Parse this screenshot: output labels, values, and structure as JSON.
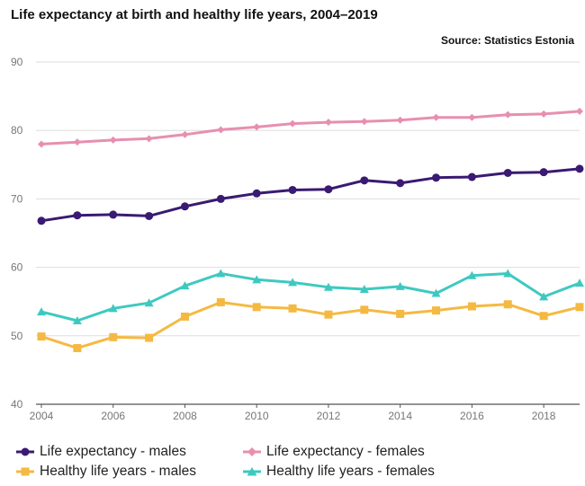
{
  "title": "Life expectancy at birth and healthy life years, 2004–2019",
  "source": "Source: Statistics Estonia",
  "chart_data": {
    "type": "line",
    "x": [
      2004,
      2005,
      2006,
      2007,
      2008,
      2009,
      2010,
      2011,
      2012,
      2013,
      2014,
      2015,
      2016,
      2017,
      2018,
      2019
    ],
    "x_ticks": [
      "2004",
      "2006",
      "2008",
      "2010",
      "2012",
      "2014",
      "2016",
      "2018"
    ],
    "y_ticks": [
      "40",
      "50",
      "60",
      "70",
      "80",
      "90"
    ],
    "ylim": [
      40,
      90
    ],
    "xlim": [
      2004,
      2019
    ],
    "grid": true,
    "legend_position": "bottom",
    "series": [
      {
        "name": "Life expectancy - males",
        "color": "#3a1a72",
        "marker": "circle",
        "values": [
          66.8,
          67.6,
          67.7,
          67.5,
          68.9,
          70.0,
          70.8,
          71.3,
          71.4,
          72.7,
          72.3,
          73.1,
          73.2,
          73.8,
          73.9,
          74.4
        ]
      },
      {
        "name": "Life expectancy - females",
        "color": "#e78fb0",
        "marker": "diamond",
        "values": [
          78.0,
          78.3,
          78.6,
          78.8,
          79.4,
          80.1,
          80.5,
          81.0,
          81.2,
          81.3,
          81.5,
          81.9,
          81.9,
          82.3,
          82.4,
          82.8
        ]
      },
      {
        "name": "Healthy life years - males",
        "color": "#f5b942",
        "marker": "square",
        "values": [
          49.9,
          48.2,
          49.8,
          49.7,
          52.8,
          54.9,
          54.2,
          54.0,
          53.1,
          53.8,
          53.2,
          53.7,
          54.3,
          54.6,
          52.9,
          54.2
        ]
      },
      {
        "name": "Healthy life years - females",
        "color": "#3ec9c0",
        "marker": "triangle",
        "values": [
          53.5,
          52.2,
          54.0,
          54.8,
          57.3,
          59.1,
          58.2,
          57.8,
          57.1,
          56.8,
          57.2,
          56.2,
          58.8,
          59.1,
          55.7,
          57.7
        ]
      }
    ]
  }
}
